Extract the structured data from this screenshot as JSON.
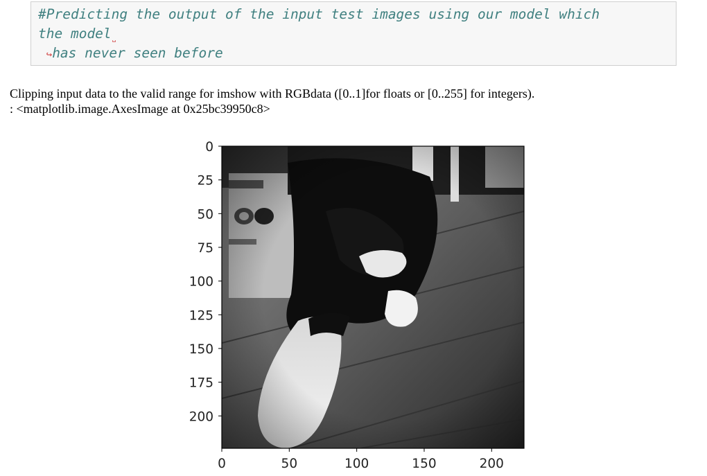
{
  "code_cell": {
    "line1": "#Predicting the output of the input test images using our model which",
    "line2": "the model",
    "line2_wrap_mark": "˽",
    "line3_arrow": "↪",
    "line3": "has never seen before"
  },
  "output": {
    "warning": "Clipping input data to the valid range for imshow with RGBdata ([0..1]for floats or [0..255] for integers).",
    "result": ": <matplotlib.image.AxesImage at 0x25bc39950c8>"
  },
  "chart_data": {
    "type": "image",
    "image_description": "grayscale photo of a black and white cat stretching on a wooden floor",
    "x_ticks": [
      "0",
      "50",
      "100",
      "150",
      "200"
    ],
    "y_ticks": [
      "0",
      "25",
      "50",
      "75",
      "100",
      "125",
      "150",
      "175",
      "200"
    ],
    "xlim": [
      0,
      224
    ],
    "ylim": [
      224,
      0
    ],
    "grid": false,
    "colormap": "gray"
  }
}
